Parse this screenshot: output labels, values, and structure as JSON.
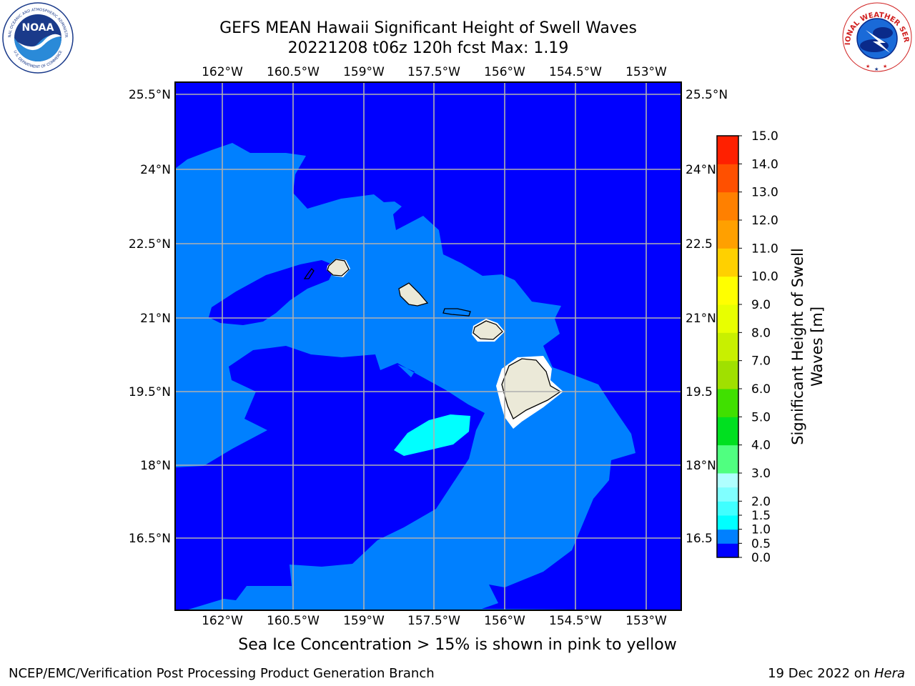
{
  "header": {
    "title_line1": "GEFS MEAN Hawaii Significant Height of Swell Waves",
    "title_line2": "20221208 t06z 120h fcst   Max: 1.19"
  },
  "logos": {
    "left": "noaa-logo",
    "left_text_top": "NATIONAL OCEANIC AND ATMOSPHERIC ADMINISTRATION",
    "left_text_bottom": "U.S. DEPARTMENT OF COMMERCE",
    "left_wordmark": "NOAA",
    "right": "nws-logo",
    "right_text_top": "NATIONAL WEATHER SERVICE"
  },
  "map": {
    "lon_labels": [
      "162°W",
      "160.5°W",
      "159°W",
      "157.5°W",
      "156°W",
      "154.5°W",
      "153°W"
    ],
    "lat_labels": [
      "25.5°N",
      "24°N",
      "22.5°N",
      "21°N",
      "19.5°N",
      "18°N",
      "16.5°N"
    ],
    "lat_labels_right": [
      "25.5°N",
      "24°N",
      "22.5",
      "21°N",
      "19.5",
      "18°N",
      "16.5"
    ],
    "extent": {
      "lon_min": -163,
      "lon_max": -152.5,
      "lat_min": 15.1,
      "lat_max": 25.8
    },
    "gridlines": true,
    "ocean_field": "swell-height-contours",
    "land_color": "#ebe9d8"
  },
  "colorbar": {
    "label_line1": "Significant Height of Swell",
    "label_line2": "Waves [m]",
    "levels": [
      "0.0",
      "0.5",
      "1.0",
      "1.5",
      "2.0",
      "2.5",
      "3.0",
      "4.0",
      "5.0",
      "6.0",
      "7.0",
      "8.0",
      "9.0",
      "10.0",
      "11.0",
      "12.0",
      "13.0",
      "14.0",
      "15.0"
    ],
    "ticks": [
      "0.0",
      "0.5",
      "1.0",
      "1.5",
      "2.0",
      "3.0",
      "4.0",
      "5.0",
      "6.0",
      "7.0",
      "8.0",
      "9.0",
      "10.0",
      "11.0",
      "12.0",
      "13.0",
      "14.0",
      "15.0"
    ],
    "colors": [
      "#0000ff",
      "#0080ff",
      "#00ffff",
      "#40ffff",
      "#80ffff",
      "#b0ffff",
      "#50ff80",
      "#00e020",
      "#40e000",
      "#a0e000",
      "#c8f000",
      "#e8ff00",
      "#ffff00",
      "#ffd000",
      "#ffa000",
      "#ff8000",
      "#ff5000",
      "#ff2000",
      "#ff0000"
    ]
  },
  "chart_data": {
    "type": "heatmap",
    "title": "GEFS MEAN Hawaii Significant Height of Swell Waves",
    "subtitle": "20221208 t06z 120h fcst   Max: 1.19",
    "variable": "Significant Height of Swell Waves [m]",
    "max_value": 1.19,
    "xlim": [
      -163,
      -152.5
    ],
    "ylim": [
      15.1,
      25.8
    ],
    "value_ranges_present": [
      "0.0-0.5",
      "0.5-1.0",
      "1.0-1.5"
    ]
  },
  "caption": "Sea Ice Concentration > 15% is shown in pink to yellow",
  "footer": {
    "left": "NCEP/EMC/Verification Post Processing Product Generation Branch",
    "right_prefix": "19 Dec 2022 on ",
    "right_host": "Hera"
  }
}
